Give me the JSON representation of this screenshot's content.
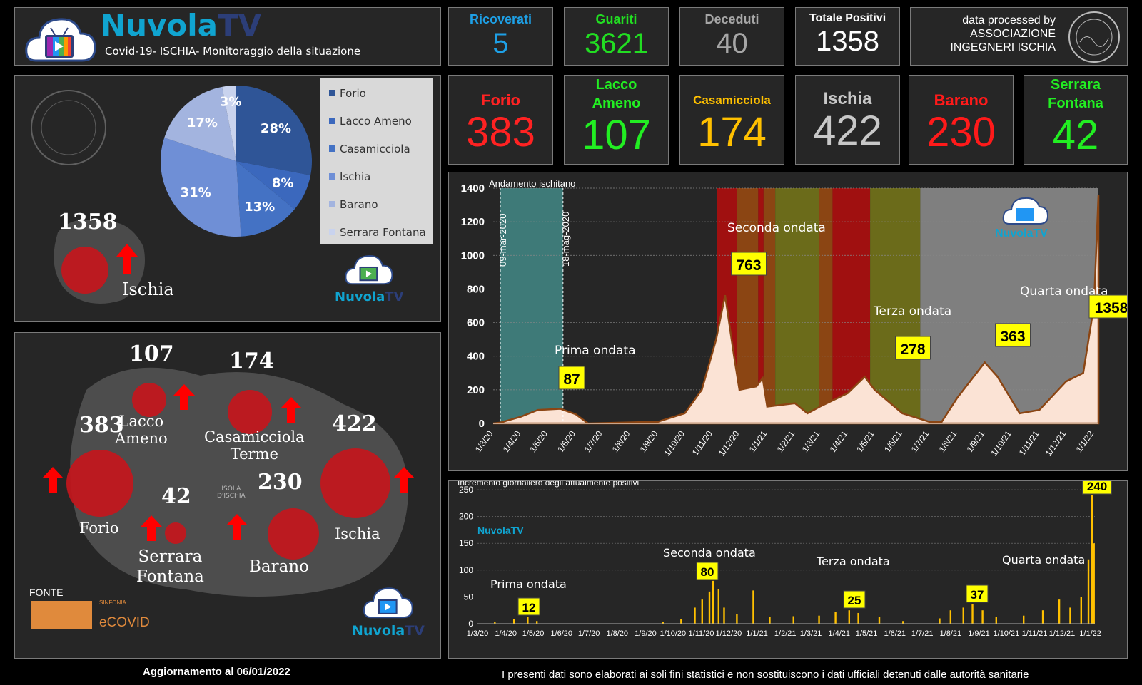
{
  "header": {
    "brand_a": "Nuvola",
    "brand_b": "TV",
    "subtitle": "Covid-19- ISCHIA- Monitoraggio della situazione"
  },
  "stats": [
    {
      "label": "Ricoverati",
      "value": "5",
      "color": "#1ea0e6"
    },
    {
      "label": "Guariti",
      "value": "3621",
      "color": "#22dd22"
    },
    {
      "label": "Deceduti",
      "value": "40",
      "color": "#a6a6a6"
    },
    {
      "label": "Totale Positivi",
      "value": "1358",
      "color": "#ffffff"
    }
  ],
  "credit": {
    "line1": "data processed by",
    "line2": "ASSOCIAZIONE",
    "line3": "INGEGNERI ISCHIA"
  },
  "municipalities": [
    {
      "label": "Forio",
      "value": "383",
      "color": "#ff2222"
    },
    {
      "label": "Lacco Ameno",
      "value": "107",
      "color": "#22ee22"
    },
    {
      "label": "Casamicciola",
      "value": "174",
      "color": "#ffc000"
    },
    {
      "label": "Ischia",
      "value": "422",
      "color": "#c8c8c8"
    },
    {
      "label": "Barano",
      "value": "230",
      "color": "#ff1a1a"
    },
    {
      "label": "Serrara Fontana",
      "value": "42",
      "color": "#22ee22"
    }
  ],
  "pie": {
    "chart_data": {
      "type": "pie",
      "labels": [
        "Forio",
        "Lacco Ameno",
        "Casamicciola",
        "Ischia",
        "Barano",
        "Serrara Fontana"
      ],
      "values": [
        28,
        8,
        13,
        31,
        17,
        3
      ],
      "value_labels": [
        "28%",
        "8%",
        "13%",
        "31%",
        "17%",
        "3%"
      ],
      "colors": [
        "#2f5597",
        "#3b68bd",
        "#4472c4",
        "#6f8fd6",
        "#a3b4df",
        "#c9d3ee"
      ],
      "legend": "right"
    },
    "total": "1358",
    "island": "Ischia"
  },
  "map": {
    "items": [
      {
        "num": "107",
        "label": "Lacco\nAmeno"
      },
      {
        "num": "174",
        "label": "Casamicciola\nTerme"
      },
      {
        "num": "383",
        "label": "Forio"
      },
      {
        "num": "422",
        "label": "Ischia"
      },
      {
        "num": "42",
        "label": "Serrara\nFontana"
      },
      {
        "num": "230",
        "label": "Barano"
      }
    ],
    "isola": "ISOLA\nD'ISCHIA",
    "fonte": "FONTE",
    "sinfonia": "SINFONIA",
    "ecovid": "eCOVID"
  },
  "logo": {
    "a": "Nuvola",
    "b": "TV"
  },
  "main_chart": {
    "chart_data": {
      "type": "area",
      "title": "Andamento ischitano",
      "ylim": [
        0,
        1400
      ],
      "yticks": [
        0,
        200,
        400,
        600,
        800,
        1000,
        1200,
        1400
      ],
      "grid": true,
      "xticks": [
        "1/3/20",
        "1/4/20",
        "1/5/20",
        "1/6/20",
        "1/7/20",
        "1/8/20",
        "1/9/20",
        "1/10/20",
        "1/11/20",
        "1/12/20",
        "1/1/21",
        "1/2/21",
        "1/3/21",
        "1/4/21",
        "1/5/21",
        "1/6/21",
        "1/7/21",
        "1/8/21",
        "1/9/21",
        "1/10/21",
        "1/11/21",
        "1/12/21",
        "1/1/22"
      ],
      "points": [
        [
          "2020-03-01",
          0
        ],
        [
          "2020-03-09",
          5
        ],
        [
          "2020-04-01",
          40
        ],
        [
          "2020-04-20",
          80
        ],
        [
          "2020-05-15",
          87
        ],
        [
          "2020-06-01",
          55
        ],
        [
          "2020-06-15",
          0
        ],
        [
          "2020-09-01",
          10
        ],
        [
          "2020-10-01",
          60
        ],
        [
          "2020-10-20",
          200
        ],
        [
          "2020-11-05",
          500
        ],
        [
          "2020-11-15",
          763
        ],
        [
          "2020-11-25",
          400
        ],
        [
          "2020-12-01",
          200
        ],
        [
          "2020-12-20",
          220
        ],
        [
          "2020-12-27",
          270
        ],
        [
          "2021-01-01",
          100
        ],
        [
          "2021-02-01",
          120
        ],
        [
          "2021-02-15",
          60
        ],
        [
          "2021-03-01",
          100
        ],
        [
          "2021-04-01",
          180
        ],
        [
          "2021-04-20",
          278
        ],
        [
          "2021-05-01",
          200
        ],
        [
          "2021-06-01",
          60
        ],
        [
          "2021-07-01",
          10
        ],
        [
          "2021-07-15",
          10
        ],
        [
          "2021-08-01",
          150
        ],
        [
          "2021-09-01",
          363
        ],
        [
          "2021-09-15",
          280
        ],
        [
          "2021-10-10",
          60
        ],
        [
          "2021-11-01",
          80
        ],
        [
          "2021-12-01",
          250
        ],
        [
          "2021-12-20",
          300
        ],
        [
          "2022-01-01",
          700
        ],
        [
          "2022-01-06",
          1358
        ]
      ],
      "bands": [
        [
          "2020-03-09",
          "2020-05-18",
          "#3e7a78"
        ],
        [
          "2020-11-06",
          "2020-11-28",
          "#a01010"
        ],
        [
          "2020-11-28",
          "2020-12-22",
          "#8b4513"
        ],
        [
          "2020-12-22",
          "2020-12-28",
          "#a01010"
        ],
        [
          "2020-12-28",
          "2021-01-10",
          "#8b4513"
        ],
        [
          "2021-01-10",
          "2021-02-28",
          "#6b6b1a"
        ],
        [
          "2021-02-28",
          "2021-03-15",
          "#8b4513"
        ],
        [
          "2021-03-15",
          "2021-04-26",
          "#a01010"
        ],
        [
          "2021-04-26",
          "2021-06-21",
          "#6b6b1a"
        ],
        [
          "2021-06-21",
          "2022-01-06",
          "#7f7f7f"
        ]
      ],
      "vlines": [
        "09-mar-2020",
        "18-mag-2020"
      ],
      "annotations": [
        {
          "label": "Prima ondata",
          "value": "87"
        },
        {
          "label": "Seconda ondata",
          "value": "763"
        },
        {
          "label": "Terza ondata",
          "value": "278"
        },
        {
          "label": "Quarta ondata",
          "value": "363"
        },
        {
          "label": "",
          "value": "1358"
        }
      ]
    }
  },
  "daily_chart": {
    "chart_data": {
      "type": "bar",
      "title": "Incremento  giornaliero degli attualmente  positivi",
      "ylim": [
        0,
        250
      ],
      "yticks": [
        0,
        50,
        100,
        150,
        200,
        250
      ],
      "xticks": [
        "1/3/20",
        "1/4/20",
        "1/5/20",
        "1/6/20",
        "1/7/20",
        "1/8/20",
        "1/9/20",
        "1/10/20",
        "1/11/20",
        "1/12/20",
        "1/1/21",
        "1/2/21",
        "1/3/21",
        "1/4/21",
        "1/5/21",
        "1/6/21",
        "1/7/21",
        "1/8/21",
        "1/9/21",
        "1/10/21",
        "1/11/21",
        "1/12/21",
        "1/1/22"
      ],
      "points": [
        [
          "2020-03-20",
          4
        ],
        [
          "2020-04-10",
          8
        ],
        [
          "2020-04-25",
          12
        ],
        [
          "2020-05-05",
          5
        ],
        [
          "2020-09-20",
          4
        ],
        [
          "2020-10-10",
          8
        ],
        [
          "2020-10-25",
          30
        ],
        [
          "2020-11-02",
          45
        ],
        [
          "2020-11-10",
          60
        ],
        [
          "2020-11-14",
          80
        ],
        [
          "2020-11-20",
          65
        ],
        [
          "2020-11-26",
          30
        ],
        [
          "2020-12-10",
          18
        ],
        [
          "2020-12-28",
          62
        ],
        [
          "2021-01-15",
          12
        ],
        [
          "2021-02-10",
          14
        ],
        [
          "2021-03-10",
          15
        ],
        [
          "2021-03-28",
          22
        ],
        [
          "2021-04-12",
          25
        ],
        [
          "2021-04-22",
          20
        ],
        [
          "2021-05-15",
          12
        ],
        [
          "2021-06-10",
          5
        ],
        [
          "2021-07-20",
          10
        ],
        [
          "2021-08-01",
          25
        ],
        [
          "2021-08-15",
          30
        ],
        [
          "2021-08-25",
          37
        ],
        [
          "2021-09-05",
          25
        ],
        [
          "2021-09-20",
          12
        ],
        [
          "2021-10-20",
          15
        ],
        [
          "2021-11-10",
          25
        ],
        [
          "2021-11-28",
          45
        ],
        [
          "2021-12-10",
          30
        ],
        [
          "2021-12-22",
          50
        ],
        [
          "2021-12-30",
          120
        ],
        [
          "2022-01-03",
          240
        ],
        [
          "2022-01-05",
          150
        ]
      ],
      "annotations": [
        {
          "label": "Prima ondata",
          "value": "12"
        },
        {
          "label": "Seconda ondata",
          "value": "80"
        },
        {
          "label": "Terza ondata",
          "value": "25"
        },
        {
          "label": "Quarta ondata",
          "value": "37"
        },
        {
          "label": "",
          "value": "240"
        }
      ]
    }
  },
  "footer": {
    "update": "Aggiornamento al 06/01/2022",
    "disclaimer": "I presenti dati sono elaborati ai soli fini statistici e non sostituiscono i dati ufficiali detenuti dalle autorità sanitarie"
  }
}
